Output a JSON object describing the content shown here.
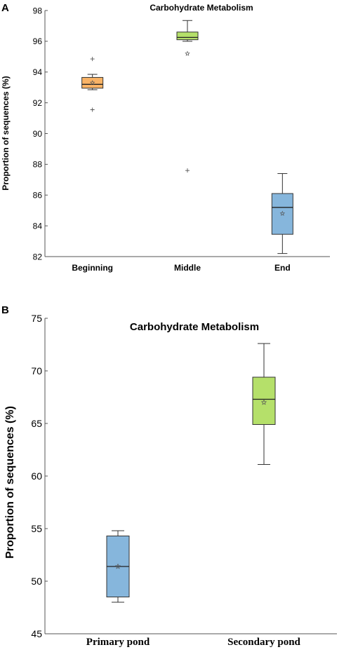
{
  "chart_data": [
    {
      "panel": "A",
      "type": "box",
      "title": "Carbohydrate Metabolism",
      "ylabel": "Proportion of sequences (%)",
      "xlabel": "",
      "ylim": [
        82,
        98
      ],
      "yticks": [
        82,
        84,
        86,
        88,
        90,
        92,
        94,
        96,
        98
      ],
      "grid": false,
      "categories": [
        "Beginning",
        "Middle",
        "End"
      ],
      "boxes": [
        {
          "category": "Beginning",
          "color": "#f9b366",
          "whisker_low": 92.85,
          "q1": 92.95,
          "median": 93.2,
          "q3": 93.65,
          "whisker_high": 93.85,
          "mean": 93.3,
          "outliers": [
            94.85,
            91.55
          ]
        },
        {
          "category": "Middle",
          "color": "#b5e06a",
          "whisker_low": 96.0,
          "q1": 96.1,
          "median": 96.25,
          "q3": 96.6,
          "whisker_high": 97.35,
          "mean": 95.2,
          "outliers": [
            87.6
          ]
        },
        {
          "category": "End",
          "color": "#86b6dc",
          "whisker_low": 82.2,
          "q1": 83.45,
          "median": 85.2,
          "q3": 86.1,
          "whisker_high": 87.4,
          "mean": 84.8,
          "outliers": []
        }
      ]
    },
    {
      "panel": "B",
      "type": "box",
      "title": "Carbohydrate Metabolism",
      "ylabel": "Proportion of sequences (%)",
      "xlabel": "",
      "ylim": [
        45,
        75
      ],
      "yticks": [
        45,
        50,
        55,
        60,
        65,
        70,
        75
      ],
      "grid": false,
      "categories": [
        "Primary pond",
        "Secondary pond"
      ],
      "boxes": [
        {
          "category": "Primary pond",
          "color": "#86b6dc",
          "whisker_low": 48.0,
          "q1": 48.5,
          "median": 51.4,
          "q3": 54.3,
          "whisker_high": 54.8,
          "mean": 51.4,
          "outliers": []
        },
        {
          "category": "Secondary pond",
          "color": "#b5e06a",
          "whisker_low": 61.1,
          "q1": 64.9,
          "median": 67.3,
          "q3": 69.4,
          "whisker_high": 72.6,
          "mean": 67.0,
          "outliers": []
        }
      ]
    }
  ]
}
